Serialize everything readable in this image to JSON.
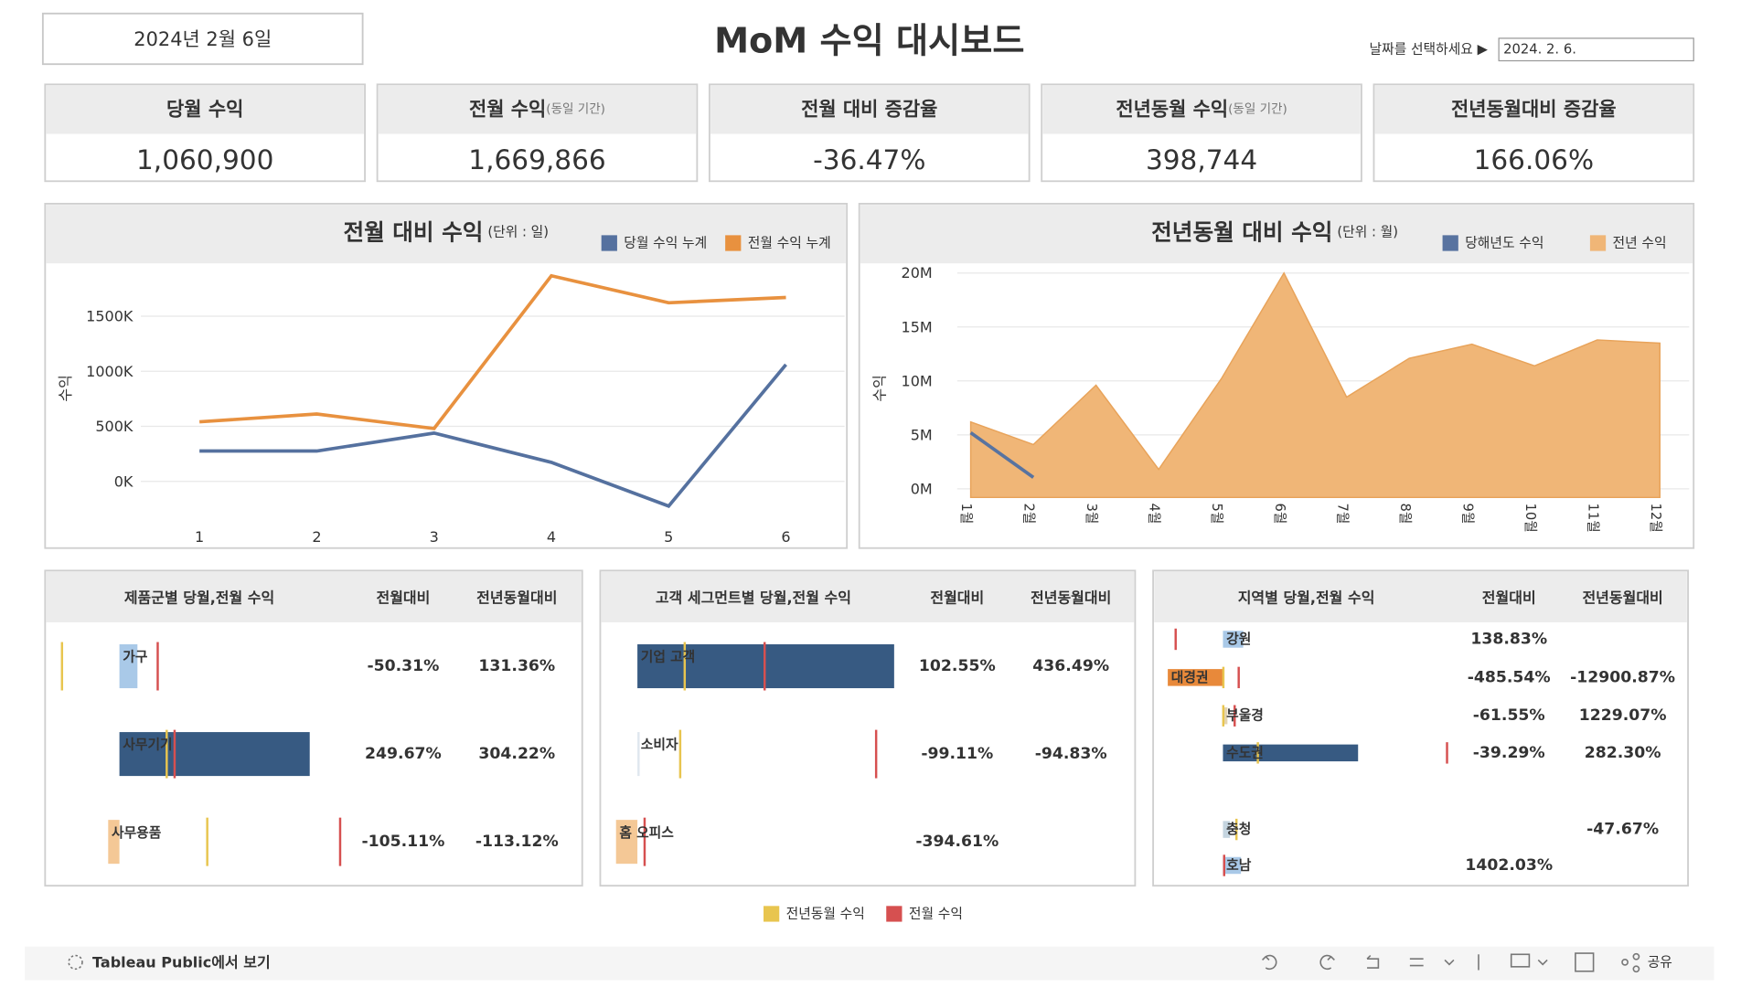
{
  "header": {
    "date": "2024년 2월 6일",
    "title": "MoM 수익 대시보드",
    "filter_label": "날짜를 선택하세요 ▶",
    "filter_value": "2024. 2. 6."
  },
  "kpis": [
    {
      "title": "당월 수익",
      "value": "1,060,900",
      "color": "#333333"
    },
    {
      "title": "전월 수익",
      "note": "(동일 기간)",
      "value": "1,669,866",
      "color": "#333333"
    },
    {
      "title": "전월 대비 증감율",
      "value": "-36.47%",
      "color": "#e06060"
    },
    {
      "title": "전년동월 수익",
      "note": "(동일 기간)",
      "value": "398,744",
      "color": "#333333"
    },
    {
      "title": "전년동월대비 증감율",
      "value": "166.06%",
      "color": "#6aae5c"
    }
  ],
  "chart_data": [
    {
      "type": "line",
      "title": "전월 대비 수익",
      "subtitle": "(단위 : 일)",
      "y_label": "수익",
      "x": [
        1,
        2,
        3,
        4,
        5,
        6
      ],
      "xlim": [
        0.5,
        6.5
      ],
      "xticks": [
        1,
        2,
        3,
        4,
        5,
        6
      ],
      "ylim": [
        -360000,
        1990000
      ],
      "yticks": [
        {
          "value": 0,
          "label": "0K"
        },
        {
          "value": 500000,
          "label": "500K"
        },
        {
          "value": 1000000,
          "label": "1000K"
        },
        {
          "value": 1500000,
          "label": "1500K"
        }
      ],
      "grid": true,
      "series": [
        {
          "name": "당월 수익 누계",
          "color": "#55719f",
          "values": [
            276000,
            276000,
            439000,
            173000,
            -224000,
            1060900
          ]
        },
        {
          "name": "전월 수익 누계",
          "color": "#e8913f",
          "values": [
            541000,
            612000,
            480000,
            1867000,
            1622000,
            1669866
          ]
        }
      ]
    },
    {
      "type": "area",
      "title": "전년동월 대비 수익",
      "subtitle": "(단위 : 월)",
      "y_label": "수익",
      "categories": [
        "1월",
        "2월",
        "3월",
        "4월",
        "5월",
        "6월",
        "7월",
        "8월",
        "9월",
        "10월",
        "11월",
        "12월"
      ],
      "ylim": [
        -800000,
        21000000
      ],
      "yticks": [
        {
          "value": 0,
          "label": "0M"
        },
        {
          "value": 5000000,
          "label": "5M"
        },
        {
          "value": 10000000,
          "label": "10M"
        },
        {
          "value": 15000000,
          "label": "15M"
        },
        {
          "value": 20000000,
          "label": "20M"
        }
      ],
      "grid": true,
      "series": [
        {
          "name": "당해년도 수익",
          "type": "line",
          "color": "#5873a0",
          "values": [
            5200000,
            1060900,
            null,
            null,
            null,
            null,
            null,
            null,
            null,
            null,
            null,
            null
          ]
        },
        {
          "name": "전년 수익",
          "type": "area",
          "color": "#f0b677",
          "values": [
            6200000,
            4100000,
            9600000,
            1800000,
            10200000,
            20000000,
            8500000,
            12100000,
            13400000,
            11400000,
            13800000,
            13500000
          ]
        }
      ]
    }
  ],
  "tables": [
    {
      "title": "제품군별 당월,전월 수익",
      "columns": [
        "전월대비",
        "전년동월대비"
      ],
      "rows": [
        {
          "label": "가구",
          "current": 96000,
          "prev_month": 204000,
          "prev_year": -306000,
          "color": "#a9c9e8",
          "mom": "-50.31%",
          "yoy": "131.36%"
        },
        {
          "label": "사무기기",
          "current": 1014000,
          "prev_month": 294000,
          "prev_year": 252000,
          "color": "#375a82",
          "mom": "249.67%",
          "yoy": "304.22%"
        },
        {
          "label": "사무용품",
          "current": -60000,
          "prev_month": 1176000,
          "prev_year": 468000,
          "color": "#f4c896",
          "mom": "-105.11%",
          "yoy": "-113.12%"
        }
      ]
    },
    {
      "title": "고객 세그먼트별 당월,전월 수익",
      "columns": [
        "전월대비",
        "전년동월대비"
      ],
      "rows": [
        {
          "label": "기업 고객",
          "current": 1140000,
          "prev_month": 565000,
          "prev_year": 210000,
          "color": "#375a82",
          "mom": "102.55%",
          "yoy": "436.49%"
        },
        {
          "label": "소비자",
          "current": 10000,
          "prev_month": 1060000,
          "prev_year": 190000,
          "color": "#dfe7ef",
          "mom": "-99.11%",
          "yoy": "-94.83%"
        },
        {
          "label": "홈 오피스",
          "current": -95000,
          "prev_month": 32000,
          "prev_year": null,
          "color": "#f4c896",
          "mom": "-394.61%",
          "yoy": null
        }
      ]
    },
    {
      "title": "지역별 당월,전월 수익",
      "columns": [
        "전월대비",
        "전년동월대비"
      ],
      "rows": [
        {
          "label": "강원",
          "current": 162000,
          "prev_month": -378000,
          "prev_year": null,
          "color": "#a9c9e8",
          "mom": "138.83%",
          "yoy": null
        },
        {
          "label": "대경권",
          "current": -441000,
          "prev_month": 126000,
          "prev_year": 3445,
          "color": "#e8893a",
          "mom": "-485.54%",
          "yoy": "-12900.87%"
        },
        {
          "label": "부울경",
          "current": 36000,
          "prev_month": 93600,
          "prev_year": 2709,
          "color": "#e3d4b0",
          "mom": "-61.55%",
          "yoy": "1229.07%"
        },
        {
          "label": "수도권",
          "current": 1080000,
          "prev_month": 1791000,
          "prev_year": 279000,
          "color": "#375a82",
          "mom": "-39.29%",
          "yoy": "282.30%"
        },
        {
          "label": "충청",
          "current": 56500,
          "prev_month": null,
          "prev_year": 108000,
          "color": "#c5d5e0",
          "mom": null,
          "yoy": "-47.67%"
        },
        {
          "label": "호남",
          "current": 144000,
          "prev_month": 9580,
          "prev_year": null,
          "color": "#a9c9e8",
          "mom": "1402.03%",
          "yoy": null
        }
      ]
    }
  ],
  "reference_legend": [
    {
      "name": "전년동월 수익",
      "color": "#e8c54f"
    },
    {
      "name": "전월 수익",
      "color": "#d65050"
    }
  ],
  "footer": {
    "link": "Tableau Public에서 보기",
    "share": "공유"
  }
}
